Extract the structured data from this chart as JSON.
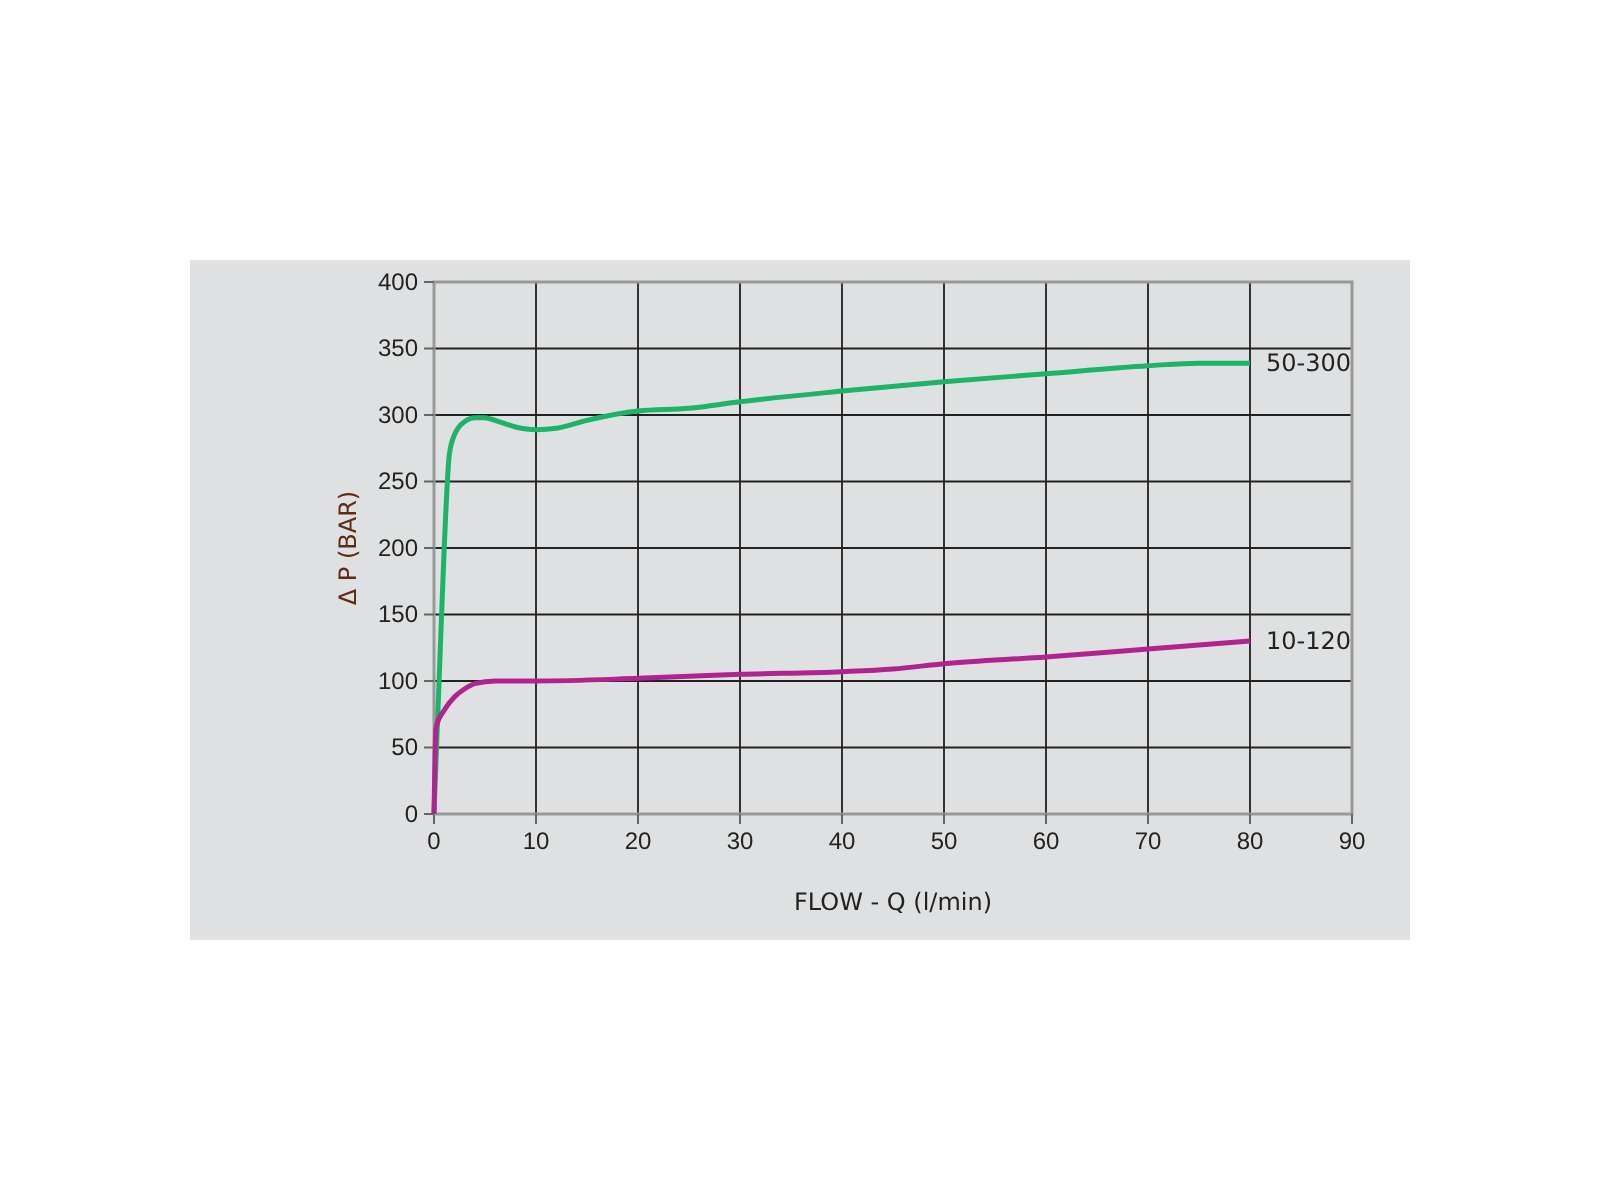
{
  "chart_data": {
    "type": "line",
    "xlabel": "FLOW - Q (l/min)",
    "ylabel": "Δ P (BAR)",
    "xlim": [
      0,
      90
    ],
    "xticks": [
      0,
      10,
      20,
      30,
      40,
      50,
      60,
      70,
      80,
      90
    ],
    "ylim": [
      0,
      400
    ],
    "yticks": [
      0,
      50,
      100,
      150,
      200,
      250,
      300,
      350,
      400
    ],
    "grid": true,
    "line_style": "solid",
    "marker": "none",
    "series": [
      {
        "name": "50-300",
        "color": "#1db36a",
        "x": [
          0,
          0.5,
          1,
          1.5,
          2,
          3,
          4,
          5,
          6,
          8,
          10,
          12,
          15,
          20,
          25,
          30,
          40,
          50,
          60,
          70,
          75,
          80
        ],
        "values": [
          0,
          100,
          200,
          270,
          285,
          295,
          298,
          298,
          296,
          291,
          289,
          290,
          296,
          303,
          305,
          310,
          318,
          325,
          331,
          337,
          339,
          339
        ]
      },
      {
        "name": "10-120",
        "color": "#b0248f",
        "x": [
          0,
          0.2,
          1,
          2,
          3,
          4,
          6,
          10,
          20,
          30,
          40,
          45,
          50,
          60,
          70,
          80
        ],
        "values": [
          0,
          65,
          78,
          88,
          94,
          98,
          100,
          100,
          102,
          105,
          107,
          109,
          113,
          118,
          124,
          130
        ]
      }
    ]
  }
}
